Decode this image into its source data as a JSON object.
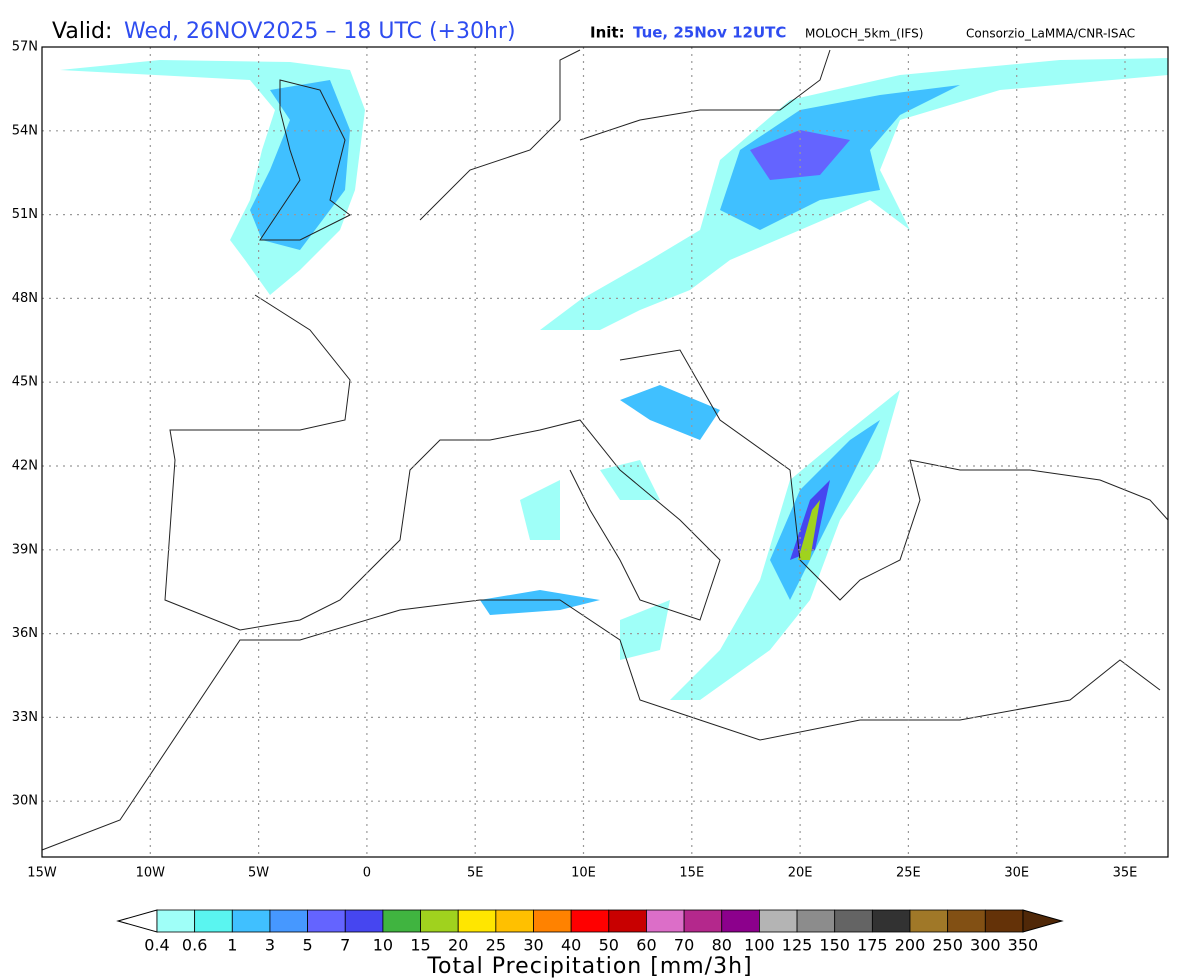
{
  "header": {
    "valid_label": "Valid:",
    "valid_value": "Wed, 26NOV2025 – 18 UTC (+30hr)",
    "init_label": "Init:",
    "init_value": "Tue, 25Nov 12UTC",
    "model": "MOLOCH_5km_(IFS)",
    "source": "Consorzio_LaMMA/CNR-ISAC"
  },
  "map": {
    "lat_labels": [
      "57N",
      "54N",
      "51N",
      "48N",
      "45N",
      "42N",
      "39N",
      "36N",
      "33N",
      "30N"
    ],
    "lon_labels": [
      "15W",
      "10W",
      "5W",
      "0",
      "5E",
      "10E",
      "15E",
      "20E",
      "25E",
      "30E",
      "35E"
    ]
  },
  "colorbar": {
    "labels": [
      "0.4",
      "0.6",
      "1",
      "3",
      "5",
      "7",
      "10",
      "15",
      "20",
      "25",
      "30",
      "40",
      "50",
      "60",
      "70",
      "80",
      "100",
      "125",
      "150",
      "175",
      "200",
      "250",
      "300",
      "350"
    ],
    "colors": [
      "#9ffff8",
      "#5af5f0",
      "#40c0ff",
      "#4698ff",
      "#6464ff",
      "#4646f0",
      "#40b440",
      "#a0d21e",
      "#ffe600",
      "#ffc000",
      "#ff8200",
      "#ff0000",
      "#c80000",
      "#dc6ec8",
      "#b4288c",
      "#8c008c",
      "#b4b4b4",
      "#8c8c8c",
      "#646464",
      "#323232",
      "#a07828",
      "#825014",
      "#643208"
    ],
    "under_color": "#ffffff",
    "over_color": "#502808",
    "title": "Total Precipitation [mm/3h]"
  }
}
